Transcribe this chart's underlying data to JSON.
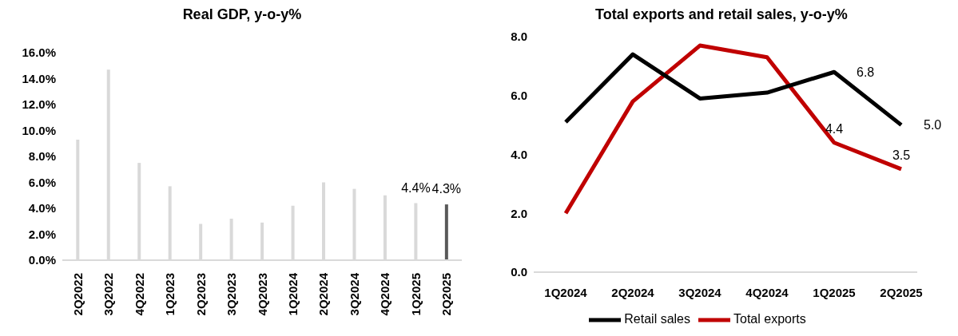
{
  "chart_data": [
    {
      "type": "bar",
      "title": "Real GDP, y-o-y%",
      "categories": [
        "2Q2022",
        "3Q2022",
        "4Q2022",
        "1Q2023",
        "2Q2023",
        "3Q2023",
        "4Q2023",
        "1Q2024",
        "2Q2024",
        "3Q2024",
        "4Q2024",
        "1Q2025",
        "2Q2025"
      ],
      "values": [
        9.3,
        14.7,
        7.5,
        5.7,
        2.8,
        3.2,
        2.9,
        4.2,
        6.0,
        5.5,
        5.0,
        4.4,
        4.3
      ],
      "colors": [
        "#d9d9d9",
        "#d9d9d9",
        "#d9d9d9",
        "#d9d9d9",
        "#d9d9d9",
        "#d9d9d9",
        "#d9d9d9",
        "#d9d9d9",
        "#d9d9d9",
        "#d9d9d9",
        "#d9d9d9",
        "#d9d9d9",
        "#595959"
      ],
      "value_labels": [
        null,
        null,
        null,
        null,
        null,
        null,
        null,
        null,
        null,
        null,
        null,
        "4.4%",
        "4.3%"
      ],
      "ylim": [
        0,
        16
      ],
      "yticks": [
        {
          "value": 0,
          "label": "0.0%"
        },
        {
          "value": 2,
          "label": "2.0%"
        },
        {
          "value": 4,
          "label": "4.0%"
        },
        {
          "value": 6,
          "label": "6.0%"
        },
        {
          "value": 8,
          "label": "8.0%"
        },
        {
          "value": 10,
          "label": "10.0%"
        },
        {
          "value": 12,
          "label": "12.0%"
        },
        {
          "value": 14,
          "label": "14.0%"
        },
        {
          "value": 16,
          "label": "16.0%"
        }
      ],
      "grid": false,
      "legend": false
    },
    {
      "type": "line",
      "title": "Total exports and retail sales,  y-o-y%",
      "categories": [
        "1Q2024",
        "2Q2024",
        "3Q2024",
        "4Q2024",
        "1Q2025",
        "2Q2025"
      ],
      "series": [
        {
          "name": "Total exports",
          "color": "#c00000",
          "values": [
            2.0,
            5.8,
            7.7,
            7.3,
            4.4,
            3.5
          ],
          "value_labels": [
            null,
            null,
            null,
            null,
            "4.4",
            "3.5"
          ]
        },
        {
          "name": "Retail sales",
          "color": "#000000",
          "values": [
            5.1,
            7.4,
            5.9,
            6.1,
            6.8,
            5.0
          ],
          "value_labels": [
            null,
            null,
            null,
            null,
            "6.8",
            "5.0"
          ]
        }
      ],
      "ylim": [
        0,
        8
      ],
      "yticks": [
        {
          "value": 0,
          "label": "0.0"
        },
        {
          "value": 2,
          "label": "2.0"
        },
        {
          "value": 4,
          "label": "4.0"
        },
        {
          "value": 6,
          "label": "6.0"
        },
        {
          "value": 8,
          "label": "8.0"
        }
      ],
      "grid": false,
      "legend": "bottom",
      "marker": "none",
      "line_style": "solid"
    }
  ]
}
